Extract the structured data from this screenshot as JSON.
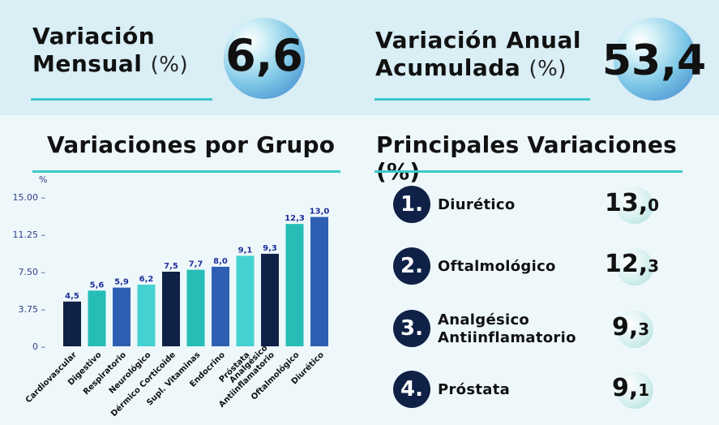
{
  "kpis": {
    "monthly": {
      "label_line1": "Variación",
      "label_line2": "Mensual",
      "unit": "(%)",
      "value": "6,6"
    },
    "annual": {
      "label_line1": "Variación Anual",
      "label_line2": "Acumulada",
      "unit": "(%)",
      "value": "53,4"
    }
  },
  "left_section_title": "Variaciones por Grupo",
  "right_section_title": "Principales Variaciones (%)",
  "top_variations": [
    {
      "rank": "1.",
      "name_line1": "Diurético",
      "name_line2": "",
      "int": "13,",
      "dec": "0"
    },
    {
      "rank": "2.",
      "name_line1": "Oftalmológico",
      "name_line2": "",
      "int": "12,",
      "dec": "3"
    },
    {
      "rank": "3.",
      "name_line1": "Analgésico",
      "name_line2": "Antiinflamatorio",
      "int": "9,",
      "dec": "3"
    },
    {
      "rank": "4.",
      "name_line1": "Próstata",
      "name_line2": "",
      "int": "9,",
      "dec": "1"
    }
  ],
  "chart_data": {
    "type": "bar",
    "title": "Variaciones por Grupo",
    "ylabel": "%",
    "ylim": [
      0,
      15
    ],
    "yticks": [
      0,
      3.75,
      7.5,
      11.25,
      15
    ],
    "ytick_labels": [
      "0",
      "3.75",
      "7.50",
      "11.25",
      "15.00"
    ],
    "categories": [
      "Cardiovascular",
      "Digestivo",
      "Respiratorio",
      "Neurológico",
      "Dérmico Corticoide",
      "Supl. Vitaminas",
      "Endocrino",
      "Próstata",
      "Analgésico Antiinflamatorio",
      "Oftalmológico",
      "Diurético"
    ],
    "category_lines": [
      [
        "Cardiovascular"
      ],
      [
        "Digestivo"
      ],
      [
        "Respiratorio"
      ],
      [
        "Neurológico"
      ],
      [
        "Dérmico Corticoide"
      ],
      [
        "Supl. Vitaminas"
      ],
      [
        "Endocrino"
      ],
      [
        "Próstata"
      ],
      [
        "Analgésico",
        "Antiinflamatorio"
      ],
      [
        "Oftalmológico"
      ],
      [
        "Diurético"
      ]
    ],
    "values": [
      4.5,
      5.6,
      5.9,
      6.2,
      7.5,
      7.7,
      8.0,
      9.1,
      9.3,
      12.3,
      13.0
    ],
    "data_labels": [
      "4,5",
      "5,6",
      "5,9",
      "6,2",
      "7,5",
      "7,7",
      "8,0",
      "9,1",
      "9,3",
      "12,3",
      "13,0"
    ],
    "colors": [
      "#0f2146",
      "#26bdb7",
      "#2f5fb3",
      "#45d1d1",
      "#0f2146",
      "#26bdb7",
      "#2f5fb3",
      "#45d1d1",
      "#0f2146",
      "#26bdb7",
      "#2f5fb3"
    ],
    "grid": false,
    "legend": "none"
  }
}
